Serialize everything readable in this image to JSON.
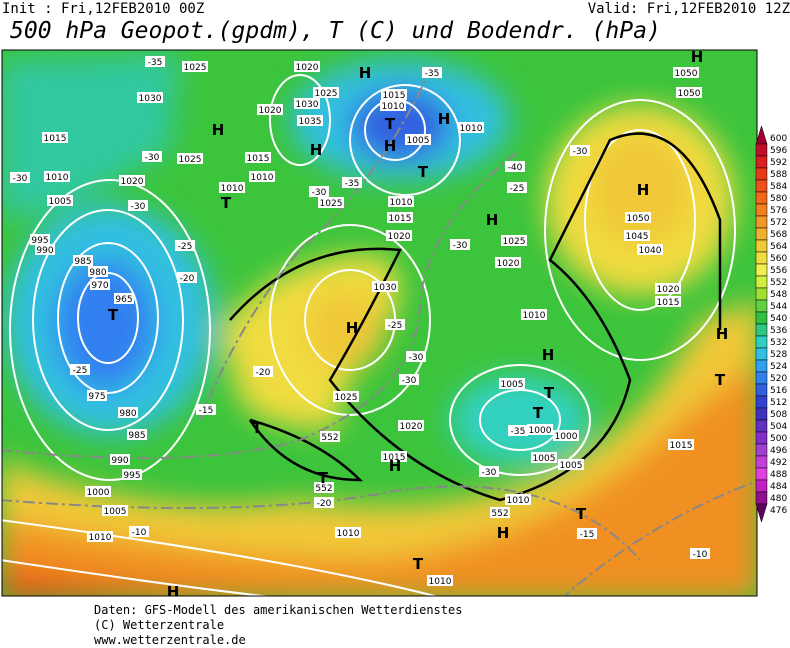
{
  "header": {
    "init": "Init : Fri,12FEB2010 00Z",
    "valid": "Valid: Fri,12FEB2010 12Z",
    "title": "500 hPa Geopot.(gpdm), T (C) und Bodendr. (hPa)"
  },
  "colorbar": {
    "levels": [
      600,
      596,
      592,
      588,
      584,
      580,
      576,
      572,
      568,
      564,
      560,
      556,
      552,
      548,
      544,
      540,
      536,
      532,
      528,
      524,
      520,
      516,
      512,
      508,
      504,
      500,
      496,
      492,
      488,
      484,
      480,
      476
    ],
    "colors": [
      "#a00030",
      "#c01028",
      "#d82020",
      "#e83818",
      "#f05018",
      "#f06818",
      "#f08020",
      "#f09828",
      "#f0b030",
      "#f0c838",
      "#f0dc40",
      "#f0f050",
      "#d0f040",
      "#a0e030",
      "#60d040",
      "#30c040",
      "#30c880",
      "#30d0c0",
      "#30c0e8",
      "#30a0f0",
      "#3080f0",
      "#3060e0",
      "#3040d0",
      "#4030c0",
      "#6030c0",
      "#8030c8",
      "#a040d0",
      "#c040d8",
      "#e040e0",
      "#c020c0",
      "#901090",
      "#600060"
    ]
  },
  "map": {
    "labels": [
      "1025",
      "1020",
      "1030",
      "1020",
      "1030",
      "1025",
      "1035",
      "1015",
      "1010",
      "1005",
      "1010",
      "1015",
      "1025",
      "1015",
      "1010",
      "1010",
      "1010",
      "1020",
      "1005",
      "1025",
      "1010",
      "1015",
      "1020",
      "995",
      "990",
      "985",
      "980",
      "970",
      "965",
      "1030",
      "1025",
      "1020",
      "1050",
      "1050",
      "1050",
      "1045",
      "1040",
      "1020",
      "1015",
      "1010",
      "1025",
      "1020",
      "1015",
      "1005",
      "1000",
      "1000",
      "1005",
      "1005",
      "975",
      "980",
      "985",
      "990",
      "995",
      "1000",
      "1005",
      "1010",
      "1010",
      "1010",
      "1010",
      "1015",
      "-35",
      "-35",
      "-35",
      "-30",
      "-30",
      "-30",
      "-30",
      "-30",
      "-30",
      "-30",
      "-30",
      "-30",
      "-25",
      "-25",
      "-25",
      "-25",
      "-20",
      "-20",
      "-20",
      "-15",
      "-15",
      "-10",
      "-10",
      "-40",
      "-35",
      "552",
      "552",
      "552",
      "H",
      "H",
      "H",
      "H",
      "H",
      "H",
      "H",
      "H",
      "H",
      "H",
      "H",
      "H",
      "H",
      "H",
      "T",
      "T",
      "T",
      "T",
      "T",
      "T",
      "T",
      "T",
      "T",
      "T",
      "T"
    ]
  },
  "footer": [
    "Daten: GFS-Modell des amerikanischen Wetterdienstes",
    "(C) Wetterzentrale",
    "www.wetterzentrale.de"
  ]
}
